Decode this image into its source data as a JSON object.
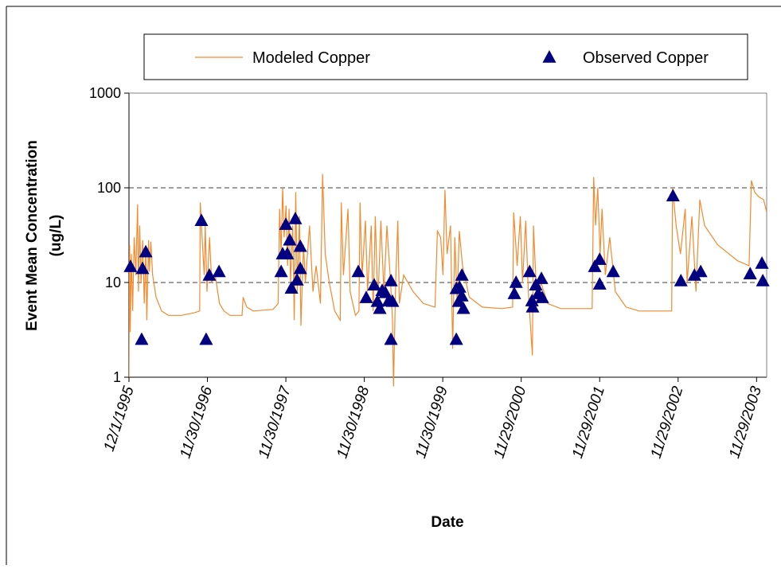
{
  "chart_data": {
    "type": "line",
    "log_y": true,
    "grid": true,
    "legend": "top",
    "xlabel": "Date",
    "ylabel": [
      "Event Mean Concentration",
      "(ug/L)"
    ],
    "xlim": [
      "1995-12-01",
      "2004-01-15"
    ],
    "xticks": [
      {
        "value": "1995-12-01",
        "label": "12/1/1995"
      },
      {
        "value": "1996-11-30",
        "label": "11/30/1996"
      },
      {
        "value": "1997-11-30",
        "label": "11/30/1997"
      },
      {
        "value": "1998-11-30",
        "label": "11/30/1998"
      },
      {
        "value": "1999-11-30",
        "label": "11/30/1999"
      },
      {
        "value": "2000-11-29",
        "label": "11/29/2000"
      },
      {
        "value": "2001-11-29",
        "label": "11/29/2001"
      },
      {
        "value": "2002-11-29",
        "label": "11/29/2002"
      },
      {
        "value": "2003-11-29",
        "label": "11/29/2003"
      }
    ],
    "ylim": [
      1,
      1000
    ],
    "yticks": [
      1,
      10,
      100,
      1000
    ],
    "series": [
      {
        "name": "Modeled Copper",
        "color": "#f28a2e",
        "style": "line",
        "x": [
          "1995-12-01",
          "1995-12-04",
          "1995-12-07",
          "1995-12-12",
          "1995-12-18",
          "1995-12-25",
          "1996-01-02",
          "1996-01-10",
          "1996-01-14",
          "1996-01-20",
          "1996-01-26",
          "1996-02-03",
          "1996-02-10",
          "1996-02-17",
          "1996-02-22",
          "1996-03-01",
          "1996-03-05",
          "1996-03-12",
          "1996-03-20",
          "1996-04-05",
          "1996-05-01",
          "1996-06-01",
          "1996-08-01",
          "1996-10-01",
          "1996-10-25",
          "1996-10-28",
          "1996-11-05",
          "1996-11-15",
          "1996-11-20",
          "1996-11-28",
          "1996-12-10",
          "1996-12-20",
          "1997-01-05",
          "1997-01-25",
          "1997-02-15",
          "1997-03-15",
          "1997-05-10",
          "1997-05-15",
          "1997-06-01",
          "1997-07-01",
          "1997-10-01",
          "1997-10-25",
          "1997-11-01",
          "1997-11-08",
          "1997-11-15",
          "1997-11-22",
          "1997-12-01",
          "1997-12-08",
          "1997-12-15",
          "1997-12-22",
          "1998-01-01",
          "1998-01-08",
          "1998-01-15",
          "1998-01-22",
          "1998-02-01",
          "1998-02-08",
          "1998-02-20",
          "1998-03-01",
          "1998-03-20",
          "1998-04-05",
          "1998-04-20",
          "1998-05-10",
          "1998-05-20",
          "1998-06-01",
          "1998-06-20",
          "1998-07-15",
          "1998-08-10",
          "1998-08-15",
          "1998-08-25",
          "1998-09-15",
          "1998-09-25",
          "1998-10-20",
          "1998-11-05",
          "1998-11-10",
          "1998-11-20",
          "1998-12-05",
          "1998-12-15",
          "1999-01-01",
          "1999-01-10",
          "1999-01-20",
          "1999-02-01",
          "1999-02-15",
          "1999-03-01",
          "1999-03-15",
          "1999-04-01",
          "1999-04-10",
          "1999-04-15",
          "1999-04-25",
          "1999-05-05",
          "1999-05-12",
          "1999-06-01",
          "1999-07-15",
          "1999-09-01",
          "1999-10-25",
          "1999-11-05",
          "1999-11-20",
          "1999-12-01",
          "1999-12-10",
          "1999-12-20",
          "2000-01-05",
          "2000-01-15",
          "2000-01-25",
          "2000-02-05",
          "2000-02-15",
          "2000-03-01",
          "2000-04-01",
          "2000-06-01",
          "2000-09-01",
          "2000-10-20",
          "2000-10-25",
          "2000-11-10",
          "2000-11-25",
          "2000-12-05",
          "2000-12-20",
          "2001-01-01",
          "2001-01-20",
          "2001-01-25",
          "2001-02-10",
          "2001-03-01",
          "2001-04-01",
          "2001-06-01",
          "2001-10-25",
          "2001-11-01",
          "2001-11-10",
          "2001-11-20",
          "2001-12-01",
          "2001-12-10",
          "2001-12-25",
          "2002-01-15",
          "2002-02-10",
          "2002-04-01",
          "2002-06-01",
          "2002-10-30",
          "2002-11-03",
          "2002-11-20",
          "2002-12-10",
          "2003-01-01",
          "2003-01-10",
          "2003-02-01",
          "2003-02-20",
          "2003-03-10",
          "2003-04-01",
          "2003-06-01",
          "2003-09-01",
          "2003-10-25",
          "2003-11-05",
          "2003-11-20",
          "2003-12-10",
          "2004-01-01",
          "2004-01-15"
        ],
        "values": [
          1,
          25,
          3,
          20,
          5,
          30,
          12,
          67,
          8,
          40,
          10,
          28,
          6,
          22,
          4,
          28,
          13,
          27,
          12,
          7,
          5,
          4.5,
          4.5,
          4.8,
          5,
          70,
          30,
          12,
          40,
          8,
          30,
          10,
          12,
          6,
          5,
          4.5,
          4.5,
          7,
          5.5,
          5,
          5.2,
          6,
          60,
          20,
          100,
          30,
          65,
          15,
          60,
          10,
          40,
          4,
          90,
          8,
          50,
          3.5,
          25,
          10,
          40,
          8,
          15,
          6,
          140,
          20,
          10,
          5,
          4,
          70,
          12,
          60,
          8,
          4.5,
          5,
          70,
          12,
          45,
          8,
          40,
          5,
          50,
          6,
          45,
          8,
          40,
          10,
          4,
          0.8,
          10,
          45,
          6,
          12,
          8,
          6,
          5.5,
          35,
          30,
          12,
          95,
          20,
          40,
          2,
          30,
          6,
          35,
          15,
          7,
          5.5,
          5.3,
          5.5,
          55,
          15,
          50,
          10,
          45,
          8,
          1.7,
          40,
          6,
          10,
          6,
          5.3,
          5.3,
          130,
          40,
          100,
          20,
          60,
          12,
          30,
          8,
          5.5,
          5,
          5,
          100,
          40,
          20,
          60,
          10,
          50,
          8,
          75,
          40,
          25,
          17,
          15,
          120,
          90,
          80,
          75,
          55
        ]
      },
      {
        "name": "Observed Copper",
        "color": "#000080",
        "style": "triangle",
        "x": [
          "1995-12-08",
          "1996-01-29",
          "1996-02-02",
          "1996-02-17",
          "1996-11-02",
          "1996-11-24",
          "1996-12-09",
          "1997-01-23",
          "1997-11-08",
          "1997-11-15",
          "1997-11-30",
          "1997-12-07",
          "1997-12-18",
          "1997-12-26",
          "1998-01-13",
          "1998-01-21",
          "1998-02-05",
          "1998-02-05",
          "1998-11-02",
          "1998-12-09",
          "1999-01-15",
          "1999-01-30",
          "1999-02-10",
          "1999-02-21",
          "1999-03-08",
          "1999-03-23",
          "1999-04-03",
          "1999-04-03",
          "1999-04-10",
          "2000-02-01",
          "2000-02-01",
          "2000-02-12",
          "2000-02-16",
          "2000-02-27",
          "2000-02-27",
          "2000-03-05",
          "2000-10-28",
          "2000-11-05",
          "2001-01-07",
          "2001-01-18",
          "2001-01-21",
          "2001-02-05",
          "2001-02-16",
          "2001-03-03",
          "2001-03-07",
          "2001-11-06",
          "2001-11-29",
          "2001-11-29",
          "2002-01-31",
          "2002-11-05",
          "2002-12-12",
          "2003-02-13",
          "2003-03-14",
          "2003-10-30",
          "2003-12-24",
          "2003-12-28"
        ],
        "values": [
          14.7,
          2.5,
          14,
          21,
          45,
          2.5,
          11.9,
          13,
          13,
          20,
          41,
          20,
          28,
          8.7,
          47,
          10.6,
          24,
          14,
          13,
          6.9,
          9.4,
          6.3,
          5.3,
          8.2,
          7.8,
          6.4,
          2.5,
          10.4,
          6.3,
          2.5,
          8.6,
          6.3,
          8.9,
          11.9,
          7.2,
          5.3,
          7.6,
          10,
          13,
          6.4,
          5.5,
          9.4,
          7.6,
          11,
          6.9,
          14.7,
          17.5,
          9.6,
          13,
          82,
          10.4,
          11.9,
          13,
          12.3,
          15.9,
          10.4
        ]
      }
    ]
  }
}
